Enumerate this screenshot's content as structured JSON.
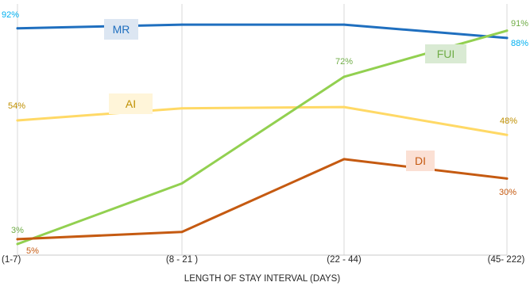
{
  "chart_data": {
    "type": "line",
    "xlabel": "LENGTH OF STAY INTERVAL (DAYS)",
    "categories": [
      "(1-7)",
      "(8 - 21 )",
      "(22 - 44)",
      "(45- 222)"
    ],
    "ylim": [
      0,
      100
    ],
    "grid": "vertical",
    "series": [
      {
        "name": "MR",
        "values": [
          92,
          93.5,
          93.5,
          88
        ],
        "color": "#1f6fbf",
        "label_color": "#00b0f0",
        "name_bg": "#dce6f2",
        "labels": [
          "92%",
          "",
          "",
          "88%"
        ]
      },
      {
        "name": "AI",
        "values": [
          54,
          59,
          59.5,
          48
        ],
        "color": "#ffd966",
        "label_color": "#bf8f00",
        "name_bg": "#fff5d9",
        "labels": [
          "54%",
          "",
          "",
          "48%"
        ]
      },
      {
        "name": "FUI",
        "values": [
          3,
          28,
          72,
          91
        ],
        "color": "#92d050",
        "label_color": "#70ad47",
        "name_bg": "#d9ead3",
        "labels": [
          "3%",
          "",
          "72%",
          "91%"
        ]
      },
      {
        "name": "DI",
        "values": [
          5,
          8,
          38,
          30
        ],
        "color": "#c55a11",
        "label_color": "#c55a11",
        "name_bg": "#fbe0d4",
        "labels": [
          "5%",
          "",
          "",
          "30%"
        ]
      }
    ]
  }
}
